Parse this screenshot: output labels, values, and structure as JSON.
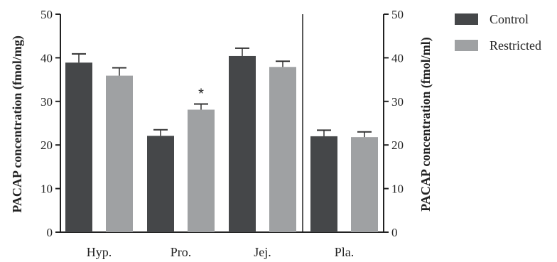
{
  "chart_data": {
    "type": "bar",
    "categories": [
      "Hyp.",
      "Pro.",
      "Jej.",
      "Pla."
    ],
    "series": [
      {
        "name": "Control",
        "color": "#454749",
        "values": [
          38.9,
          22.1,
          40.4,
          22.0
        ],
        "errors": [
          2.0,
          1.4,
          1.8,
          1.4
        ]
      },
      {
        "name": "Restricted",
        "color": "#9fa1a3",
        "values": [
          35.9,
          28.1,
          37.9,
          21.8
        ],
        "errors": [
          1.8,
          1.3,
          1.3,
          1.2
        ]
      }
    ],
    "ylim": [
      0,
      50
    ],
    "yticks": [
      0,
      10,
      20,
      30,
      40,
      50
    ],
    "ylabel_left": "PACAP concentration (fmol/mg)",
    "ylabel_right": "PACAP concentration  (fmol/ml)",
    "annotations": [
      {
        "category": "Pro.",
        "series": "Restricted",
        "text": "*"
      }
    ],
    "legend_position": "top-right"
  }
}
